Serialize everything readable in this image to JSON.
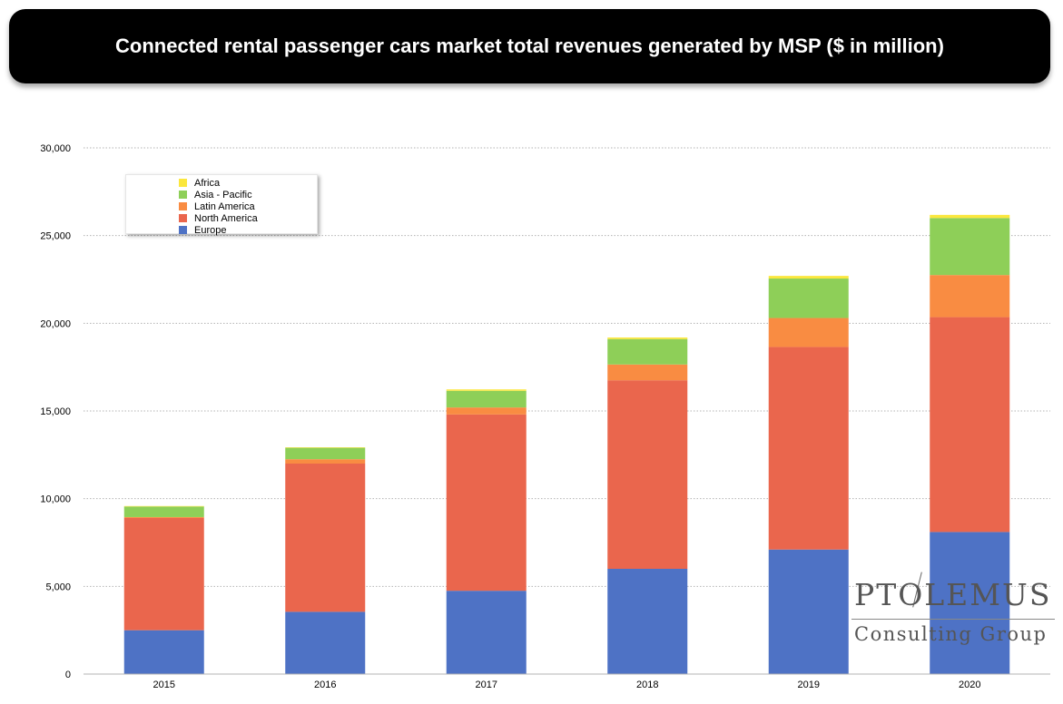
{
  "header": {
    "title": "Connected rental passenger cars market total revenues generated by MSP ($ in million)"
  },
  "chart_data": {
    "type": "bar",
    "stacked": true,
    "title": "Connected rental passenger cars market total revenues generated by MSP ($ in million)",
    "categories": [
      "2015",
      "2016",
      "2017",
      "2018",
      "2019",
      "2020"
    ],
    "series": [
      {
        "name": "Europe",
        "color": "#4E72C5",
        "values": [
          2500,
          3550,
          4750,
          6000,
          7100,
          8100
        ]
      },
      {
        "name": "North America",
        "color": "#EA664D",
        "values": [
          6400,
          8450,
          10050,
          10750,
          11550,
          12250
        ]
      },
      {
        "name": "Latin America",
        "color": "#F98C42",
        "values": [
          50,
          250,
          400,
          900,
          1650,
          2400
        ]
      },
      {
        "name": "Asia - Pacific",
        "color": "#8ECF58",
        "values": [
          600,
          650,
          950,
          1450,
          2250,
          3250
        ]
      },
      {
        "name": "Africa",
        "color": "#FBE73D",
        "values": [
          30,
          30,
          80,
          90,
          150,
          180
        ]
      }
    ],
    "ylim": [
      0,
      30000
    ],
    "yticks": [
      0,
      5000,
      10000,
      15000,
      20000,
      25000,
      30000
    ],
    "ytick_labels": [
      "0",
      "5,000",
      "10,000",
      "15,000",
      "20,000",
      "25,000",
      "30,000"
    ],
    "grid": true,
    "legend_position": "top-left"
  },
  "legend": {
    "items": [
      {
        "label": "Africa",
        "color": "#FBE73D"
      },
      {
        "label": "Asia - Pacific",
        "color": "#8ECF58"
      },
      {
        "label": "Latin America",
        "color": "#F98C42"
      },
      {
        "label": "North America",
        "color": "#EA664D"
      },
      {
        "label": "Europe",
        "color": "#4E72C5"
      }
    ]
  },
  "logo": {
    "name": "PTOLEMUS",
    "subtitle": "Consulting Group"
  }
}
